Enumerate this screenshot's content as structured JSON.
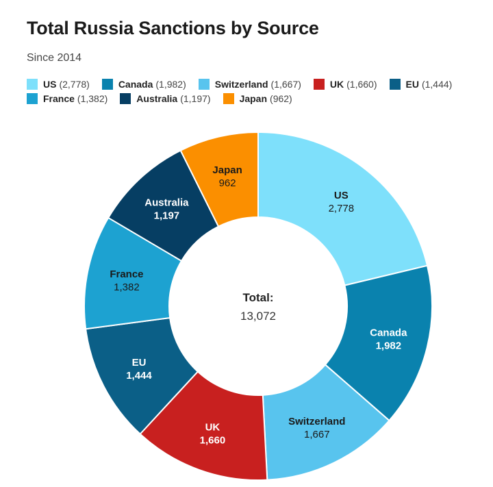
{
  "chart_data": {
    "type": "pie",
    "variant": "donut",
    "title": "Total Russia Sanctions by Source",
    "subtitle": "Since 2014",
    "categories": [
      "US",
      "Canada",
      "Switzerland",
      "UK",
      "EU",
      "France",
      "Australia",
      "Japan"
    ],
    "values": [
      2778,
      1982,
      1667,
      1660,
      1444,
      1382,
      1197,
      962
    ],
    "value_labels": [
      "2,778",
      "1,982",
      "1,667",
      "1,660",
      "1,444",
      "1,382",
      "1,197",
      "962"
    ],
    "legend_labels": [
      "(2,778)",
      "(1,982)",
      "(1,667)",
      "(1,660)",
      "(1,444)",
      "(1,382)",
      "(1,197)",
      "(962)"
    ],
    "colors": [
      "#7ee0fb",
      "#0a82ae",
      "#58c4ee",
      "#c8201f",
      "#0b5f87",
      "#1da2d1",
      "#063e63",
      "#fb8f00"
    ],
    "label_colors": [
      "dark",
      "light",
      "dark",
      "light",
      "light",
      "dark",
      "light",
      "dark"
    ],
    "center_label": "Total:",
    "center_value": "13,072",
    "legend_position": "top-left"
  }
}
